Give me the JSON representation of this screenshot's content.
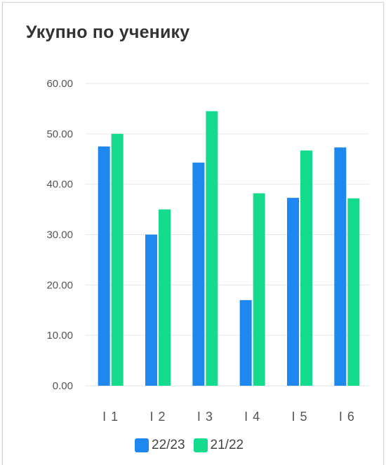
{
  "colors": {
    "series1": "#1e88f0",
    "series2": "#15dc8c",
    "grid": "#e6e6e6",
    "axis_text": "#555555",
    "title": "#333333"
  },
  "chart_data": {
    "type": "bar",
    "title": "Укупно по ученику",
    "xlabel": "",
    "ylabel": "",
    "categories": [
      "I 1",
      "I 2",
      "I 3",
      "I 4",
      "I 5",
      "I 6"
    ],
    "y_ticks": [
      "0.00",
      "10.00",
      "20.00",
      "30.00",
      "40.00",
      "50.00",
      "60.00"
    ],
    "ylim": [
      0,
      60
    ],
    "grid": true,
    "legend_position": "bottom",
    "series": [
      {
        "name": "22/23",
        "values": [
          47.5,
          30.0,
          44.3,
          17.0,
          37.3,
          47.3
        ]
      },
      {
        "name": "21/22",
        "values": [
          50.0,
          35.0,
          54.5,
          38.2,
          46.7,
          37.2
        ]
      }
    ]
  }
}
